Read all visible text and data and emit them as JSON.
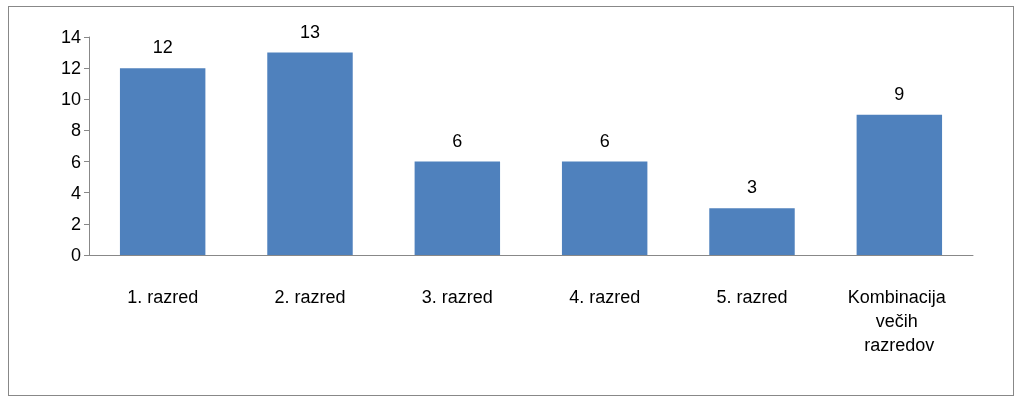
{
  "chart_data": {
    "type": "bar",
    "categories": [
      "1. razred",
      "2. razred",
      "3. razred",
      "4. razred",
      "5. razred",
      "Kombinacija večih razredov"
    ],
    "values": [
      12,
      13,
      6,
      6,
      3,
      9
    ],
    "color": "#4f81bd",
    "ylim": [
      0,
      14
    ],
    "yticks": [
      0,
      2,
      4,
      6,
      8,
      10,
      12,
      14
    ],
    "grid": false,
    "data_labels": true
  }
}
